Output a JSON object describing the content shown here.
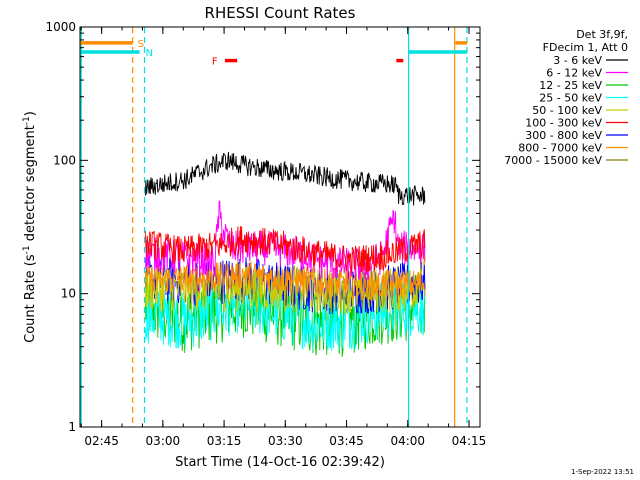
{
  "chart_data": {
    "type": "line",
    "title": "RHESSI Count Rates",
    "xlabel": "Start Time (14-Oct-16 02:39:42)",
    "ylabel_main": "Count Rate (s",
    "ylabel_sup1": "-1",
    "ylabel_mid": " detector segment",
    "ylabel_sup2": "-1",
    "ylabel_end": ")",
    "footer_date": "1-Sep-2022 13:51",
    "x_unit": "minutes after 02:39:42",
    "xlim_minutes": [
      0,
      98
    ],
    "ylim": [
      1,
      1000
    ],
    "y_scale": "log",
    "x_ticks": [
      {
        "label": "02:45",
        "minute": 5.3
      },
      {
        "label": "03:00",
        "minute": 20.3
      },
      {
        "label": "03:15",
        "minute": 35.3
      },
      {
        "label": "03:30",
        "minute": 50.3
      },
      {
        "label": "03:45",
        "minute": 65.3
      },
      {
        "label": "04:00",
        "minute": 80.3
      },
      {
        "label": "04:15",
        "minute": 95.3
      }
    ],
    "y_ticks": [
      {
        "label": "1",
        "value": 1
      },
      {
        "label": "10",
        "value": 10
      },
      {
        "label": "100",
        "value": 100
      },
      {
        "label": "1000",
        "value": 1000
      }
    ],
    "legend_header": [
      "Det 3f,9f,",
      "FDecim 1, Att 0"
    ],
    "data_window_minutes": [
      16.0,
      84.5
    ],
    "series": [
      {
        "name": "3 - 6 keV",
        "color": "#000000",
        "anchors": [
          [
            16,
            62
          ],
          [
            20,
            66
          ],
          [
            26,
            72
          ],
          [
            32,
            90
          ],
          [
            36,
            100
          ],
          [
            40,
            92
          ],
          [
            46,
            85
          ],
          [
            54,
            80
          ],
          [
            62,
            73
          ],
          [
            70,
            68
          ],
          [
            76,
            66
          ],
          [
            77.5,
            64
          ],
          [
            78,
            55
          ],
          [
            84.5,
            54
          ]
        ],
        "noise": 0.035
      },
      {
        "name": "6 - 12 keV",
        "color": "#ff00ff",
        "anchors": [
          [
            16,
            20
          ],
          [
            30,
            18
          ],
          [
            33,
            17
          ],
          [
            34,
            40
          ],
          [
            35,
            30
          ],
          [
            37,
            22
          ],
          [
            46,
            22
          ],
          [
            54,
            20
          ],
          [
            60,
            17
          ],
          [
            70,
            16
          ],
          [
            74,
            19
          ],
          [
            76,
            30
          ],
          [
            77,
            38
          ],
          [
            78,
            22
          ],
          [
            84.5,
            22
          ]
        ],
        "noise": 0.06
      },
      {
        "name": "12 - 25 keV",
        "color": "#00c800",
        "anchors": [
          [
            16,
            8
          ],
          [
            26,
            6.5
          ],
          [
            32,
            7.5
          ],
          [
            40,
            8.5
          ],
          [
            50,
            7
          ],
          [
            58,
            6
          ],
          [
            66,
            6.2
          ],
          [
            74,
            7.5
          ],
          [
            84.5,
            8
          ]
        ],
        "noise": 0.12
      },
      {
        "name": "25 - 50 keV",
        "color": "#00ffff",
        "anchors": [
          [
            16,
            7
          ],
          [
            26,
            6.2
          ],
          [
            32,
            7.2
          ],
          [
            40,
            8.5
          ],
          [
            50,
            7
          ],
          [
            58,
            6
          ],
          [
            66,
            6.2
          ],
          [
            74,
            7.5
          ],
          [
            84.5,
            8
          ]
        ],
        "noise": 0.1
      },
      {
        "name": "50 - 100 keV",
        "color": "#cccc00",
        "anchors": [
          [
            16,
            11
          ],
          [
            40,
            11
          ],
          [
            70,
            10.5
          ],
          [
            82,
            11
          ],
          [
            83.5,
            16
          ],
          [
            84.5,
            22
          ]
        ],
        "noise": 0.08
      },
      {
        "name": "100 - 300 keV",
        "color": "#ff0000",
        "anchors": [
          [
            16,
            24
          ],
          [
            25,
            21
          ],
          [
            34,
            23
          ],
          [
            40,
            26
          ],
          [
            50,
            23
          ],
          [
            58,
            20
          ],
          [
            66,
            18
          ],
          [
            74,
            19
          ],
          [
            84.5,
            24
          ]
        ],
        "noise": 0.05
      },
      {
        "name": "300 - 800 keV",
        "color": "#0000ff",
        "anchors": [
          [
            16,
            13
          ],
          [
            30,
            12
          ],
          [
            40,
            13
          ],
          [
            50,
            11.5
          ],
          [
            60,
            10.5
          ],
          [
            70,
            10.5
          ],
          [
            84.5,
            12
          ]
        ],
        "noise": 0.08
      },
      {
        "name": "800 - 7000 keV",
        "color": "#ff8c00",
        "anchors": [
          [
            16,
            13
          ],
          [
            30,
            13
          ],
          [
            40,
            14
          ],
          [
            50,
            13
          ],
          [
            60,
            12
          ],
          [
            70,
            11.5
          ],
          [
            84.5,
            12
          ]
        ],
        "noise": 0.05
      },
      {
        "name": "7000 - 15000 keV",
        "color": "#808000",
        "anchors": [],
        "noise": 0
      }
    ],
    "vertical_markers": [
      {
        "minute": 0.3,
        "color": "#00e0e0",
        "style": "solid"
      },
      {
        "minute": 12.9,
        "color": "#ff8c00",
        "style": "dashed"
      },
      {
        "minute": 15.8,
        "color": "#00e0e0",
        "style": "dashed"
      },
      {
        "minute": 80.5,
        "color": "#00e0e0",
        "style": "solid"
      },
      {
        "minute": 91.8,
        "color": "#ff8c00",
        "style": "solid"
      },
      {
        "minute": 94.8,
        "color": "#00e0e0",
        "style": "dashed"
      }
    ],
    "state_bars": [
      {
        "label": "S",
        "label_color": "#ff8c00",
        "color": "#ff8c00",
        "value": 760,
        "segments": [
          [
            0,
            12.9
          ],
          [
            92,
            94.8
          ]
        ]
      },
      {
        "label": "N",
        "label_color": "#00e0e0",
        "color": "#00e0e0",
        "value": 650,
        "segments": [
          [
            0,
            14.6
          ],
          [
            80.5,
            94.8
          ]
        ]
      },
      {
        "label": "F",
        "label_color": "#ff0000",
        "color": "#ff0000",
        "value": 560,
        "segments": [
          [
            35.5,
            38.5
          ],
          [
            77.5,
            79.2
          ]
        ]
      }
    ]
  }
}
